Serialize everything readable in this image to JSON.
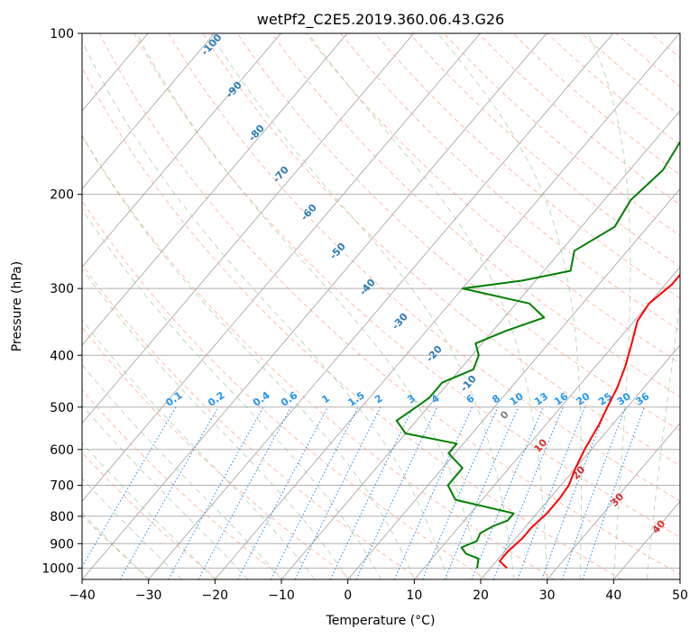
{
  "chart_data": {
    "type": "line",
    "title": "wetPf2_C2E5.2019.360.06.43.G26",
    "xlabel": "Temperature (°C)",
    "ylabel": "Pressure (hPa)",
    "xlim": [
      -40,
      50
    ],
    "ylim": [
      1050,
      100
    ],
    "y_scale": "log",
    "grid": true,
    "xticks": [
      "−40",
      "−30",
      "−20",
      "−10",
      "0",
      "10",
      "20",
      "30",
      "40",
      "50"
    ],
    "yticks": [
      "100",
      "200",
      "300",
      "400",
      "500",
      "600",
      "700",
      "800",
      "900",
      "1000"
    ],
    "series": [
      {
        "role": "temperature",
        "color": "#ff0000",
        "points": [
          [
            22.5,
            1000
          ],
          [
            20.5,
            970
          ],
          [
            20.5,
            930
          ],
          [
            21,
            880
          ],
          [
            21,
            840
          ],
          [
            21.5,
            790
          ],
          [
            21.5,
            740
          ],
          [
            21.2,
            700
          ],
          [
            20,
            650
          ],
          [
            19,
            600
          ],
          [
            18,
            540
          ],
          [
            17,
            500
          ],
          [
            16,
            460
          ],
          [
            14.5,
            420
          ],
          [
            12.5,
            380
          ],
          [
            10.5,
            345
          ],
          [
            10,
            320
          ],
          [
            11,
            295
          ],
          [
            11,
            270
          ],
          [
            10.5,
            250
          ],
          [
            9,
            230
          ],
          [
            7,
            208
          ],
          [
            5,
            185
          ],
          [
            3,
            165
          ],
          [
            1.5,
            150
          ],
          [
            0.5,
            135
          ],
          [
            0,
            122
          ],
          [
            1,
            113
          ],
          [
            3,
            105
          ],
          [
            5.5,
            100
          ]
        ]
      },
      {
        "role": "dewpoint",
        "color": "#008000",
        "points": [
          [
            18,
            1000
          ],
          [
            17,
            960
          ],
          [
            14.5,
            940
          ],
          [
            13,
            915
          ],
          [
            14.5,
            890
          ],
          [
            14,
            860
          ],
          [
            15,
            835
          ],
          [
            16.5,
            815
          ],
          [
            16.5,
            790
          ],
          [
            6,
            745
          ],
          [
            3,
            700
          ],
          [
            3,
            670
          ],
          [
            3,
            650
          ],
          [
            -1,
            610
          ],
          [
            -1,
            585
          ],
          [
            -10,
            560
          ],
          [
            -13,
            530
          ],
          [
            -12,
            505
          ],
          [
            -11,
            480
          ],
          [
            -11,
            450
          ],
          [
            -8,
            425
          ],
          [
            -9,
            400
          ],
          [
            -11,
            380
          ],
          [
            -8,
            360
          ],
          [
            -4,
            340
          ],
          [
            -8,
            320
          ],
          [
            -20,
            300
          ],
          [
            -12,
            290
          ],
          [
            -6,
            278
          ],
          [
            -8,
            255
          ],
          [
            -5,
            230
          ],
          [
            -6,
            205
          ],
          [
            -5,
            180
          ],
          [
            -6,
            160
          ],
          [
            -5,
            140
          ],
          [
            -3,
            125
          ],
          [
            -1,
            115
          ],
          [
            2,
            100
          ]
        ]
      }
    ],
    "dry_adiabat_labels": [
      "-100",
      "-90",
      "-80",
      "-70",
      "-60",
      "-50",
      "-40",
      "-30",
      "-20",
      "-10",
      "0",
      "10",
      "20",
      "30",
      "40"
    ],
    "mixing_ratio_labels": [
      "0.1",
      "0.2",
      "0.4",
      "0.6",
      "1",
      "1.5",
      "2",
      "3",
      "4",
      "6",
      "8",
      "10",
      "13",
      "16",
      "20",
      "25",
      "30",
      "36"
    ]
  }
}
